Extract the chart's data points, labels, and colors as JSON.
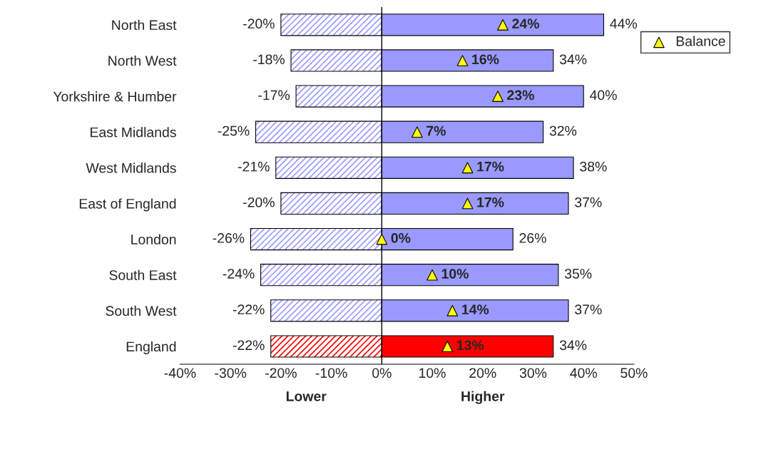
{
  "chart_data": {
    "type": "bar",
    "orientation": "horizontal",
    "categories": [
      "North East",
      "North West",
      "Yorkshire & Humber",
      "East Midlands",
      "West Midlands",
      "East of England",
      "London",
      "South East",
      "South West",
      "England"
    ],
    "series": [
      {
        "colors": [
          "#9999ff",
          "#9999ff",
          "#9999ff",
          "#9999ff",
          "#9999ff",
          "#9999ff",
          "#9999ff",
          "#9999ff",
          "#9999ff",
          "#ff0000"
        ],
        "values": [
          -20,
          -18,
          -17,
          -25,
          -21,
          -20,
          -26,
          -24,
          -22,
          -22
        ],
        "value_labels": [
          "-20%",
          "-18%",
          "-17%",
          "-25%",
          "-21%",
          "-20%",
          "-26%",
          "-24%",
          "-22%",
          "-22%"
        ]
      },
      {
        "colors": [
          "#9999ff",
          "#9999ff",
          "#9999ff",
          "#9999ff",
          "#9999ff",
          "#9999ff",
          "#9999ff",
          "#9999ff",
          "#9999ff",
          "#ff0000"
        ],
        "values": [
          44,
          34,
          40,
          32,
          38,
          37,
          26,
          35,
          37,
          34
        ],
        "value_labels": [
          "44%",
          "34%",
          "40%",
          "32%",
          "38%",
          "37%",
          "26%",
          "35%",
          "37%",
          "34%"
        ]
      },
      {
        "type": "scatter",
        "name": "Balance",
        "color": "#ffff00",
        "marker": "triangle",
        "values": [
          24,
          16,
          23,
          7,
          17,
          17,
          0,
          10,
          14,
          13
        ],
        "value_labels": [
          "24%",
          "16%",
          "23%",
          "7%",
          "17%",
          "17%",
          "0%",
          "10%",
          "14%",
          "13%"
        ]
      }
    ],
    "xlim": [
      -40,
      50
    ],
    "xticks": [
      {
        "value": -40,
        "label": "-40%"
      },
      {
        "value": -30,
        "label": "-30%"
      },
      {
        "value": -20,
        "label": "-20%"
      },
      {
        "value": -10,
        "label": "-10%"
      },
      {
        "value": 0,
        "label": "0%"
      },
      {
        "value": 10,
        "label": "10%"
      },
      {
        "value": 20,
        "label": "20%"
      },
      {
        "value": 30,
        "label": "30%"
      },
      {
        "value": 40,
        "label": "40%"
      },
      {
        "value": 50,
        "label": "50%"
      }
    ],
    "ref_lines": [
      {
        "axis": "x",
        "value": 0,
        "color": "#000000"
      }
    ],
    "annotations": [
      "Lower",
      "Higher"
    ],
    "stacked": true,
    "grid": false,
    "legend": "top right"
  }
}
